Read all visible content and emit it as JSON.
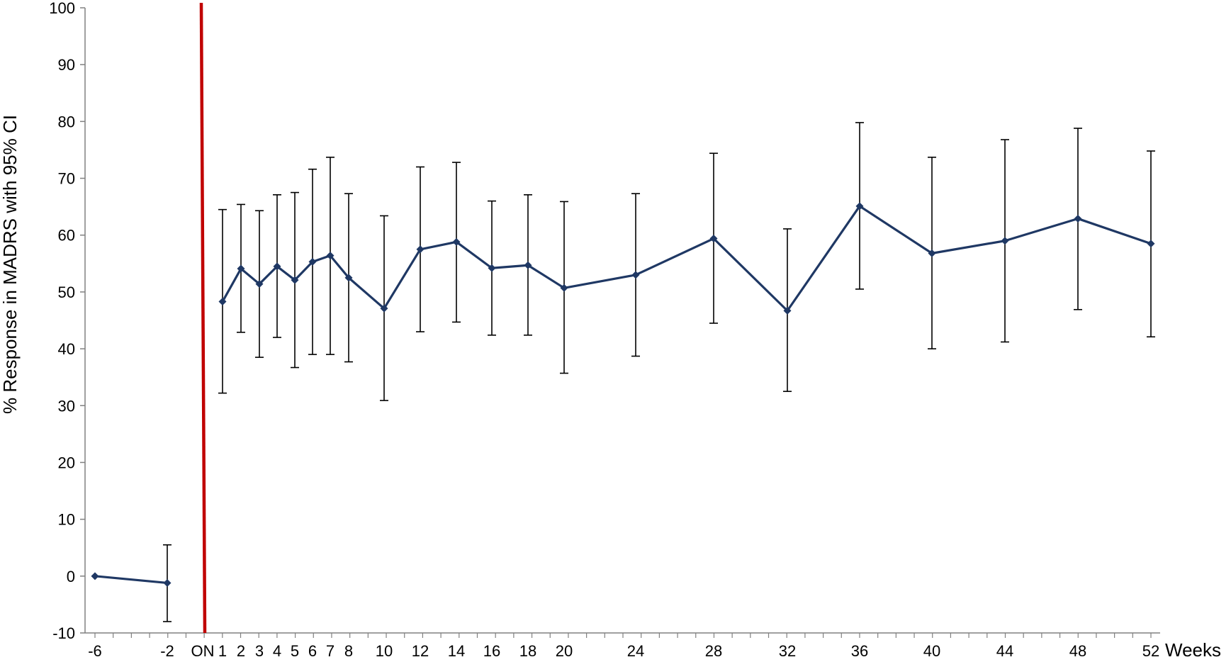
{
  "chart_data": {
    "type": "line",
    "title": "",
    "ylabel": "% Response in MADRS with 95% CI",
    "xlabel": "Weeks",
    "ylim": [
      -10,
      100
    ],
    "yticks": [
      -10,
      0,
      10,
      20,
      30,
      40,
      50,
      60,
      70,
      80,
      90,
      100
    ],
    "grid": false,
    "legend": "none",
    "xtick_labels": [
      "-6",
      "-2",
      "ON",
      "1",
      "2",
      "3",
      "4",
      "5",
      "6",
      "7",
      "8",
      "10",
      "12",
      "14",
      "16",
      "18",
      "20",
      "24",
      "28",
      "32",
      "36",
      "40",
      "44",
      "48",
      "52"
    ],
    "onset_marker_label": "ON",
    "colors": {
      "series": "#1f3864",
      "errorbar": "#000000",
      "onset_line": "#c00000",
      "axis": "#808080"
    },
    "series": [
      {
        "points": [
          {
            "x": "-6",
            "y": 0,
            "lo": null,
            "hi": null
          },
          {
            "x": "-2",
            "y": -1.2,
            "lo": -8,
            "hi": 5.5
          }
        ]
      },
      {
        "points": [
          {
            "x": "1",
            "y": 48.3,
            "lo": 32.2,
            "hi": 64.5
          },
          {
            "x": "2",
            "y": 54.1,
            "lo": 42.9,
            "hi": 65.4
          },
          {
            "x": "3",
            "y": 51.4,
            "lo": 38.5,
            "hi": 64.3
          },
          {
            "x": "4",
            "y": 54.5,
            "lo": 42.0,
            "hi": 67.1
          },
          {
            "x": "5",
            "y": 52.1,
            "lo": 36.7,
            "hi": 67.5
          },
          {
            "x": "6",
            "y": 55.3,
            "lo": 39.0,
            "hi": 71.6
          },
          {
            "x": "7",
            "y": 56.4,
            "lo": 39.0,
            "hi": 73.7
          },
          {
            "x": "8",
            "y": 52.5,
            "lo": 37.7,
            "hi": 67.3
          },
          {
            "x": "10",
            "y": 47.1,
            "lo": 30.9,
            "hi": 63.4
          },
          {
            "x": "12",
            "y": 57.5,
            "lo": 43.0,
            "hi": 72.0
          },
          {
            "x": "14",
            "y": 58.8,
            "lo": 44.7,
            "hi": 72.8
          },
          {
            "x": "16",
            "y": 54.2,
            "lo": 42.4,
            "hi": 66.0
          },
          {
            "x": "18",
            "y": 54.7,
            "lo": 42.4,
            "hi": 67.1
          },
          {
            "x": "20",
            "y": 50.7,
            "lo": 35.7,
            "hi": 65.9
          },
          {
            "x": "24",
            "y": 53.0,
            "lo": 38.7,
            "hi": 67.3
          },
          {
            "x": "28",
            "y": 59.4,
            "lo": 44.5,
            "hi": 74.4
          },
          {
            "x": "32",
            "y": 46.7,
            "lo": 32.5,
            "hi": 61.1
          },
          {
            "x": "36",
            "y": 65.1,
            "lo": 50.5,
            "hi": 79.8
          },
          {
            "x": "40",
            "y": 56.8,
            "lo": 40.0,
            "hi": 73.7
          },
          {
            "x": "44",
            "y": 59.0,
            "lo": 41.2,
            "hi": 76.8
          },
          {
            "x": "48",
            "y": 62.9,
            "lo": 46.9,
            "hi": 78.8
          },
          {
            "x": "52",
            "y": 58.5,
            "lo": 42.1,
            "hi": 74.8
          }
        ]
      }
    ]
  }
}
